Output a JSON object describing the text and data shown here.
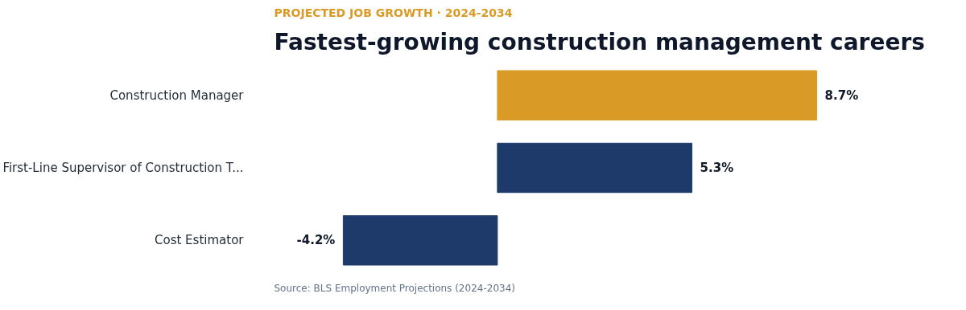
{
  "chart_data": {
    "type": "bar",
    "orientation": "horizontal",
    "subtitle": "PROJECTED JOB GROWTH · 2024-2034",
    "title": "Fastest-growing construction management careers",
    "categories": [
      "Construction Manager",
      "First-Line Supervisor of Construction T...",
      "Cost Estimator"
    ],
    "values": [
      8.7,
      5.3,
      -4.2
    ],
    "colors": [
      "#d99a26",
      "#1e3a6b",
      "#1e3a6b"
    ],
    "value_labels": [
      "8.7%",
      "5.3%",
      "-4.2%"
    ],
    "grid": false,
    "annotations": [
      "Source: BLS Employment Projections (2024-2034)"
    ]
  }
}
